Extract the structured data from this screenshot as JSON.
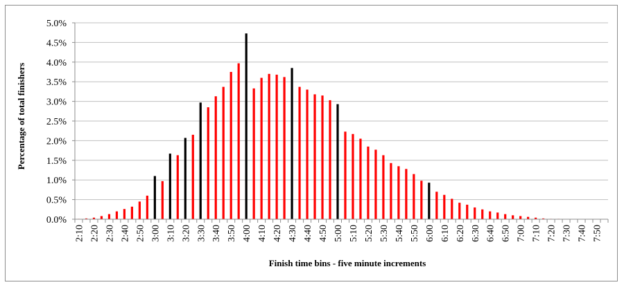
{
  "chart_data": {
    "type": "bar",
    "title": "",
    "xlabel": "Finish time bins - five minute increments",
    "ylabel": "Percentage of total finishers",
    "ylim": [
      0,
      5.0
    ],
    "yticks": [
      "0.0%",
      "0.5%",
      "1.0%",
      "1.5%",
      "2.0%",
      "2.5%",
      "3.0%",
      "3.5%",
      "4.0%",
      "4.5%",
      "5.0%"
    ],
    "grid": true,
    "legend": "none",
    "colors": {
      "default": "#ff0000",
      "highlight": "#000000",
      "grid": "#bfbfbf"
    },
    "categories": [
      "2:10",
      "2:15",
      "2:20",
      "2:25",
      "2:30",
      "2:35",
      "2:40",
      "2:45",
      "2:50",
      "2:55",
      "3:00",
      "3:05",
      "3:10",
      "3:15",
      "3:20",
      "3:25",
      "3:30",
      "3:35",
      "3:40",
      "3:45",
      "3:50",
      "3:55",
      "4:00",
      "4:05",
      "4:10",
      "4:15",
      "4:20",
      "4:25",
      "4:30",
      "4:35",
      "4:40",
      "4:45",
      "4:50",
      "4:55",
      "5:00",
      "5:05",
      "5:10",
      "5:15",
      "5:20",
      "5:25",
      "5:30",
      "5:35",
      "5:40",
      "5:45",
      "5:50",
      "5:55",
      "6:00",
      "6:05",
      "6:10",
      "6:15",
      "6:20",
      "6:25",
      "6:30",
      "6:35",
      "6:40",
      "6:45",
      "6:50",
      "6:55",
      "7:00",
      "7:05",
      "7:10",
      "7:15",
      "7:20",
      "7:25",
      "7:30",
      "7:35",
      "7:40",
      "7:45",
      "7:50",
      "7:55"
    ],
    "tick_labels": [
      "2:10",
      "2:20",
      "2:30",
      "2:40",
      "2:50",
      "3:00",
      "3:10",
      "3:20",
      "3:30",
      "3:40",
      "3:50",
      "4:00",
      "4:10",
      "4:20",
      "4:30",
      "4:40",
      "4:50",
      "5:00",
      "5:10",
      "5:20",
      "5:30",
      "5:40",
      "5:50",
      "6:00",
      "6:10",
      "6:20",
      "6:30",
      "6:40",
      "6:50",
      "7:00",
      "7:10",
      "7:20",
      "7:30",
      "7:40",
      "7:50"
    ],
    "values": [
      0.01,
      0.02,
      0.04,
      0.08,
      0.13,
      0.2,
      0.26,
      0.32,
      0.45,
      0.6,
      1.1,
      0.97,
      1.67,
      1.63,
      2.07,
      2.15,
      2.97,
      2.85,
      3.13,
      3.37,
      3.75,
      3.97,
      4.73,
      3.33,
      3.6,
      3.7,
      3.68,
      3.62,
      3.85,
      3.37,
      3.3,
      3.18,
      3.15,
      3.03,
      2.93,
      2.23,
      2.17,
      2.05,
      1.85,
      1.77,
      1.63,
      1.43,
      1.35,
      1.28,
      1.15,
      0.98,
      0.93,
      0.7,
      0.62,
      0.52,
      0.42,
      0.37,
      0.3,
      0.25,
      0.2,
      0.17,
      0.13,
      0.1,
      0.08,
      0.06,
      0.04,
      0.02,
      0.01,
      0.01,
      0.0,
      0.0,
      0.0,
      0.0,
      0.0,
      0.0
    ],
    "highlighted_categories": [
      "3:00",
      "3:10",
      "3:20",
      "3:30",
      "4:00",
      "4:30",
      "5:00",
      "6:00"
    ]
  }
}
